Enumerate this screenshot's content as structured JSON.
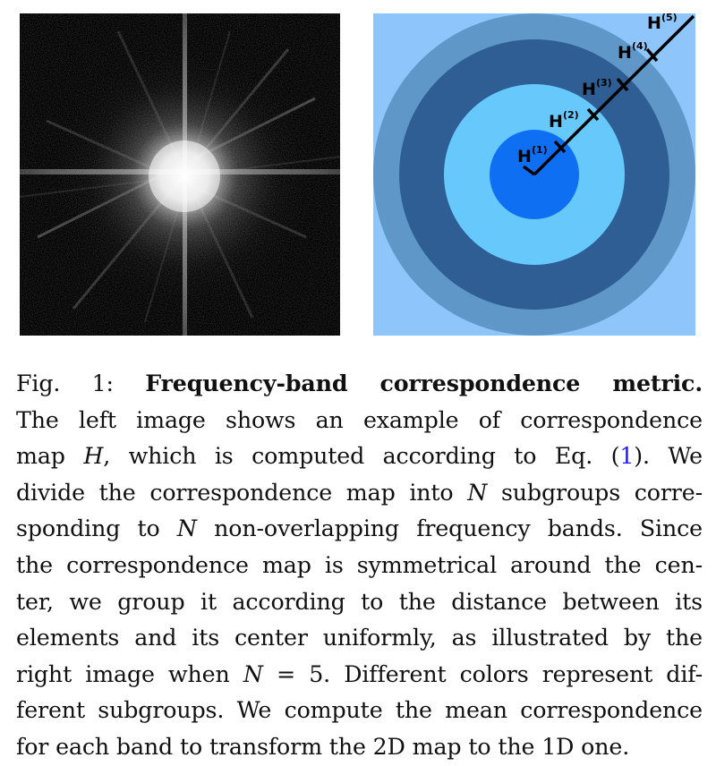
{
  "figure": {
    "left_image": {
      "description": "correspondence map H spectrum"
    },
    "right_image": {
      "band_colors": [
        "#0f6ff2",
        "#66c8fb",
        "#2e5e93",
        "#5f97c9",
        "#8ec6fb"
      ],
      "band_labels": [
        {
          "base": "H",
          "sup": "(1)"
        },
        {
          "base": "H",
          "sup": "(2)"
        },
        {
          "base": "H",
          "sup": "(3)"
        },
        {
          "base": "H",
          "sup": "(4)"
        },
        {
          "base": "H",
          "sup": "(5)"
        }
      ]
    }
  },
  "caption": {
    "fig_label": "Fig. 1:",
    "fig_title": "Frequency-band correspondence metric.",
    "lines": [
      "The left image shows an example of correspondence",
      "map",
      "H",
      ", which is computed according to Eq. (",
      "1",
      "). We",
      "divide the correspondence map into",
      "N",
      "subgroups corre-",
      "sponding to",
      "N",
      "non-overlapping frequency bands. Since",
      "the correspondence map is symmetrical around the cen-",
      "ter, we group it according to the distance between its",
      "elements and its center uniformly, as illustrated by the",
      "right image when",
      "N",
      "= 5. Different colors represent dif-",
      "ferent subgroups. We compute the mean correspondence",
      "for each band to transform the 2D map to the 1D one."
    ]
  }
}
